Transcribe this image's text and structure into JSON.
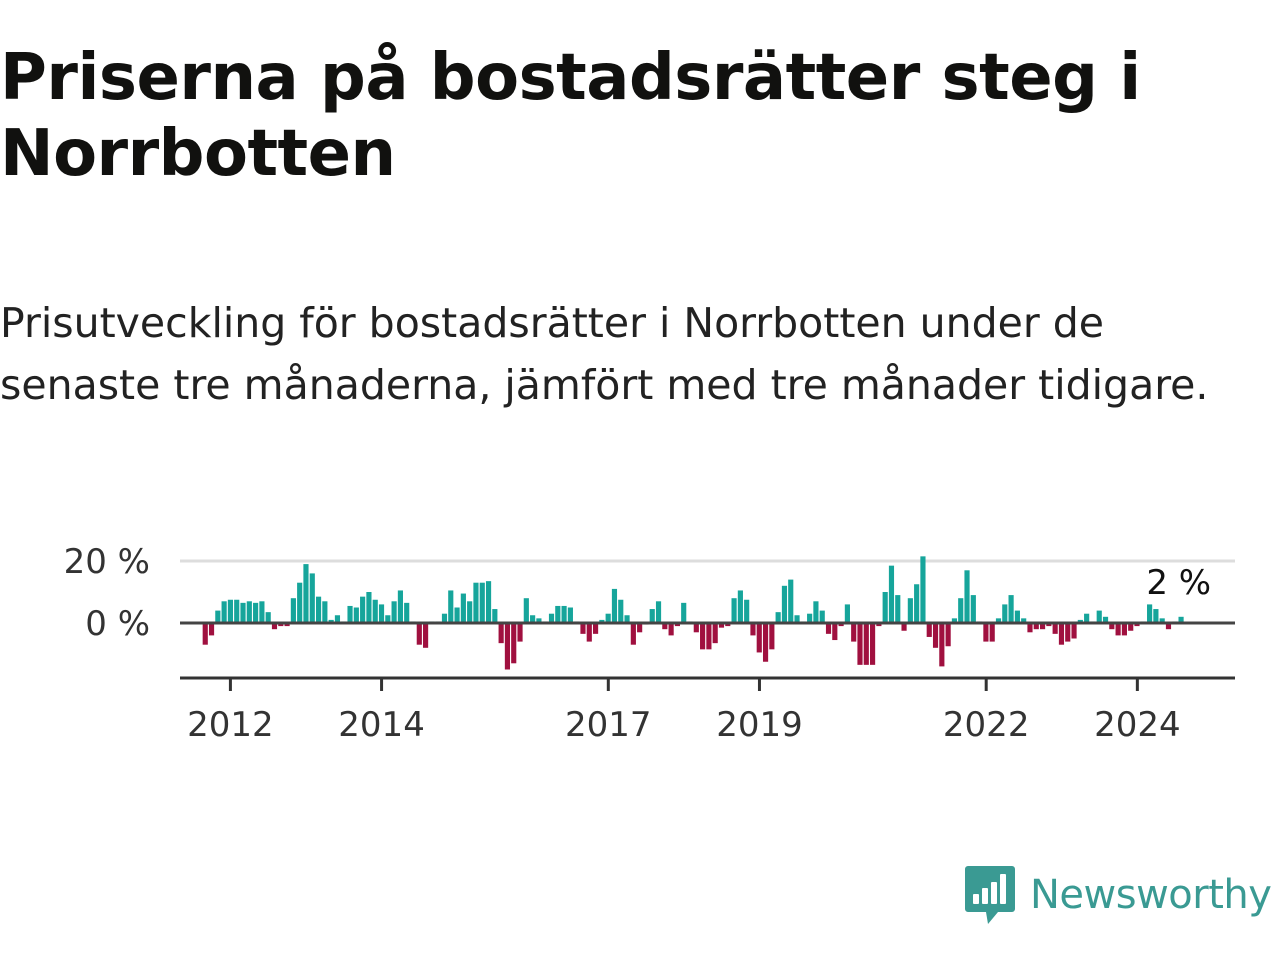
{
  "title": "Priserna på bostadsrätter steg i Norrbotten",
  "subtitle": "Prisutveckling för bostadsrätter i Norrbotten under de senaste tre månaderna, jämfört med tre månader tidigare.",
  "brand": {
    "name": "Newsworthy",
    "icon": "newsworthy-logo-icon",
    "color": "#3a9a93"
  },
  "colors": {
    "positive": "#16a59b",
    "negative": "#a0103f",
    "gridline": "#dddddd",
    "zeroline": "#444444",
    "axis": "#333333"
  },
  "chart_data": {
    "type": "bar",
    "title": "Prisutveckling för bostadsrätter i Norrbotten",
    "unit": "%",
    "x_start": 2011.667,
    "x_step": 0.0833,
    "x_range": [
      2011.333,
      2025.292
    ],
    "ylim": [
      -20,
      20
    ],
    "y_ticks": [
      {
        "value": 0,
        "label": "0 %"
      },
      {
        "value": 20,
        "label": "20 %"
      }
    ],
    "x_ticks": [
      {
        "value": 2012,
        "label": "2012"
      },
      {
        "value": 2014,
        "label": "2014"
      },
      {
        "value": 2017,
        "label": "2017"
      },
      {
        "value": 2019,
        "label": "2019"
      },
      {
        "value": 2022,
        "label": "2022"
      },
      {
        "value": 2024,
        "label": "2024"
      }
    ],
    "last_value_label": "2 %",
    "values": [
      -7,
      -4,
      4,
      7,
      7.5,
      7.5,
      6.5,
      7,
      6.5,
      7,
      3.5,
      -2,
      -1,
      -1,
      8,
      13,
      19,
      16,
      8.5,
      7,
      1,
      2.5,
      0.5,
      5.5,
      5,
      8.5,
      10,
      7.5,
      6,
      2.5,
      7,
      10.5,
      6.5,
      0.5,
      -7,
      -8,
      0.5,
      0.5,
      3,
      10.5,
      5,
      9.5,
      7,
      13,
      13,
      13.5,
      4.5,
      -6.5,
      -15,
      -13,
      -6,
      8,
      2.5,
      1.5,
      0.5,
      3,
      5.5,
      5.5,
      5,
      0.5,
      -3.5,
      -6,
      -3.5,
      1,
      3,
      11,
      7.5,
      2.5,
      -7,
      -3,
      -0.5,
      4.5,
      7,
      -2,
      -4,
      -1,
      6.5,
      0.5,
      -3,
      -8.5,
      -8.5,
      -6.5,
      -1.5,
      -1,
      8,
      10.5,
      7.5,
      -4,
      -9.5,
      -12.5,
      -8.5,
      3.5,
      12,
      14,
      2.5,
      0.5,
      3,
      7,
      4,
      -3.5,
      -5.5,
      -1,
      6,
      -6,
      -13.5,
      -13.5,
      -13.5,
      -1,
      10,
      18.5,
      9,
      -2.5,
      8,
      12.5,
      21.5,
      -4.5,
      -8,
      -14,
      -7.5,
      1.5,
      8,
      17,
      9,
      0.5,
      -6,
      -6,
      1.5,
      6,
      9,
      4,
      1.5,
      -3,
      -2,
      -2,
      -1,
      -3.5,
      -7,
      -6,
      -5,
      1,
      3,
      0.5,
      4,
      2,
      -2,
      -4,
      -4,
      -2.5,
      -1,
      0.5,
      6,
      4.5,
      1.5,
      -2,
      0.5,
      2
    ]
  }
}
